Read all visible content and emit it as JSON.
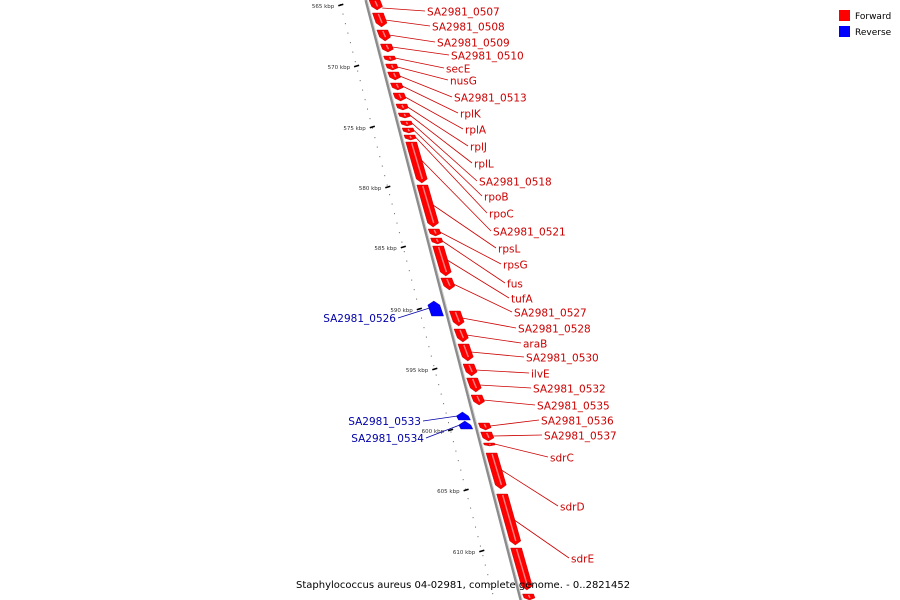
{
  "caption": "Staphylococcus aureus 04-02981, complete genome. - 0..2821452",
  "legend": [
    {
      "label": "Forward",
      "color": "#ff0000"
    },
    {
      "label": "Reverse",
      "color": "#0000ff"
    }
  ],
  "colors": {
    "forward": "#ff0000",
    "reverse": "#0000ff",
    "forward_label": "#cc0000",
    "reverse_label": "#0000aa",
    "backbone": "#8c8c8c"
  },
  "ticks": [
    "565 kbp",
    "570 kbp",
    "575 kbp",
    "580 kbp",
    "585 kbp",
    "590 kbp",
    "595 kbp",
    "600 kbp",
    "605 kbp",
    "610 kbp"
  ],
  "forward_genes": [
    "SA2981_0507",
    "SA2981_0508",
    "SA2981_0509",
    "SA2981_0510",
    "secE",
    "nusG",
    "SA2981_0513",
    "rplK",
    "rplA",
    "rplJ",
    "rplL",
    "SA2981_0518",
    "rpoB",
    "rpoC",
    "SA2981_0521",
    "rpsL",
    "rpsG",
    "fus",
    "tufA",
    "SA2981_0527",
    "SA2981_0528",
    "araB",
    "SA2981_0530",
    "ilvE",
    "SA2981_0532",
    "SA2981_0535",
    "SA2981_0536",
    "SA2981_0537",
    "sdrC",
    "sdrD",
    "sdrE"
  ],
  "reverse_genes": [
    "SA2981_0526",
    "SA2981_0533",
    "SA2981_0534"
  ]
}
